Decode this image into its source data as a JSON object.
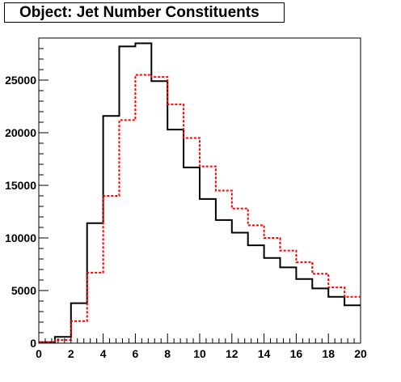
{
  "chart_data": {
    "type": "step",
    "title": "Object: Jet Number Constituents",
    "xlim": [
      0,
      20
    ],
    "ylim": [
      0,
      29000
    ],
    "x_ticks": [
      0,
      2,
      4,
      6,
      8,
      10,
      12,
      14,
      16,
      18,
      20
    ],
    "y_ticks": [
      0,
      5000,
      10000,
      15000,
      20000,
      25000
    ],
    "x_tick_labels": [
      "0",
      "2",
      "4",
      "6",
      "8",
      "10",
      "12",
      "14",
      "16",
      "18",
      "20"
    ],
    "y_tick_labels": [
      "0",
      "5000",
      "10000",
      "15000",
      "20000",
      "25000"
    ],
    "bin_edges": [
      0,
      1,
      2,
      3,
      4,
      5,
      6,
      7,
      8,
      9,
      10,
      11,
      12,
      13,
      14,
      15,
      16,
      17,
      18,
      19,
      20
    ],
    "series": [
      {
        "color": "#000000",
        "style": "solid",
        "values": [
          100,
          600,
          3800,
          11400,
          21600,
          28200,
          28500,
          24900,
          20300,
          16700,
          13700,
          11700,
          10500,
          9300,
          8100,
          7200,
          6100,
          5200,
          4400,
          3600
        ]
      },
      {
        "color": "#ff0000",
        "style": "dashed",
        "values": [
          100,
          300,
          2100,
          6700,
          14000,
          21200,
          25500,
          25300,
          22700,
          19500,
          16800,
          14500,
          12800,
          11200,
          10000,
          8800,
          7700,
          6600,
          5300,
          4400
        ]
      }
    ]
  }
}
